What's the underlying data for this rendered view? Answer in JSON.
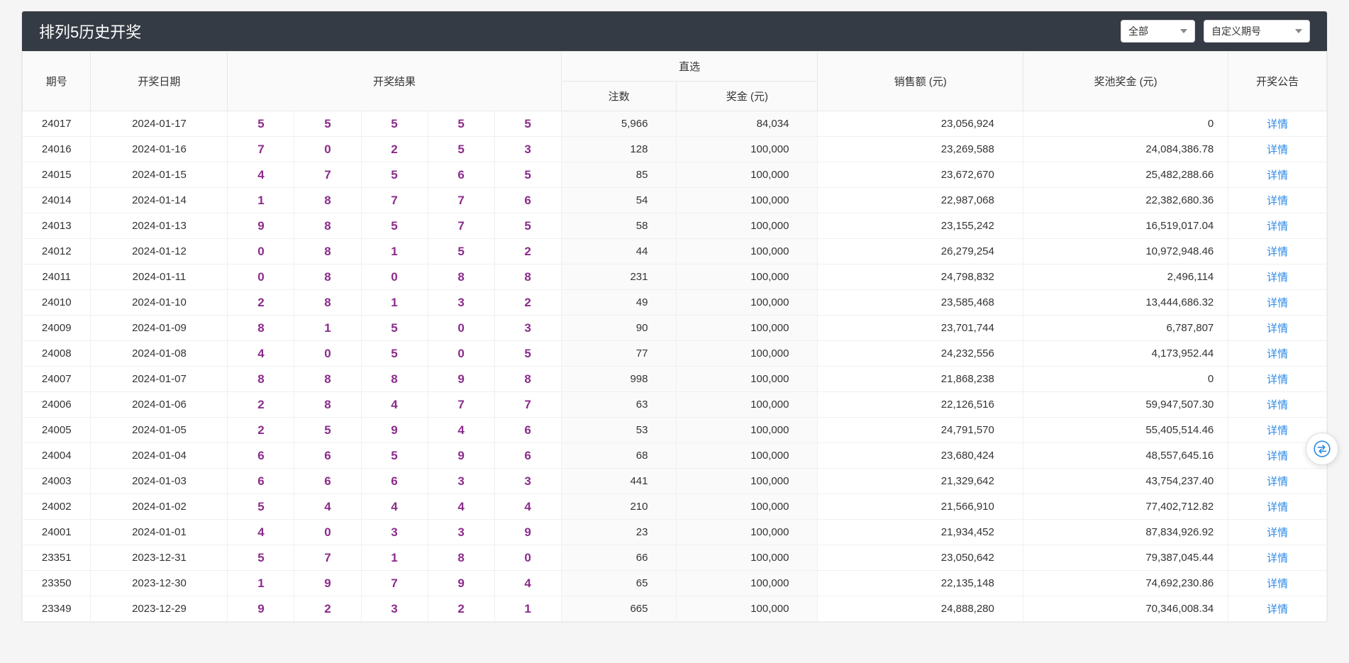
{
  "title": "排列5历史开奖",
  "filters": {
    "all": "全部",
    "custom": "自定义期号"
  },
  "headers": {
    "issue": "期号",
    "date": "开奖日期",
    "result": "开奖结果",
    "direct": "直选",
    "count": "注数",
    "prize": "奖金 (元)",
    "sales": "销售额 (元)",
    "pool": "奖池奖金 (元)",
    "notice": "开奖公告",
    "detail": "详情"
  },
  "col_widths": {
    "issue": 80,
    "date": 160,
    "ball": 78,
    "count": 135,
    "prize": 165,
    "sales": 240,
    "pool": 240,
    "notice": 115
  },
  "colors": {
    "ball": "#8b2b8b",
    "link": "#2e8ae6",
    "headerbar": "#353b44"
  },
  "rows": [
    {
      "issue": "24017",
      "date": "2024-01-17",
      "balls": [
        "5",
        "5",
        "5",
        "5",
        "5"
      ],
      "count": "5,966",
      "prize": "84,034",
      "sales": "23,056,924",
      "pool": "0"
    },
    {
      "issue": "24016",
      "date": "2024-01-16",
      "balls": [
        "7",
        "0",
        "2",
        "5",
        "3"
      ],
      "count": "128",
      "prize": "100,000",
      "sales": "23,269,588",
      "pool": "24,084,386.78"
    },
    {
      "issue": "24015",
      "date": "2024-01-15",
      "balls": [
        "4",
        "7",
        "5",
        "6",
        "5"
      ],
      "count": "85",
      "prize": "100,000",
      "sales": "23,672,670",
      "pool": "25,482,288.66"
    },
    {
      "issue": "24014",
      "date": "2024-01-14",
      "balls": [
        "1",
        "8",
        "7",
        "7",
        "6"
      ],
      "count": "54",
      "prize": "100,000",
      "sales": "22,987,068",
      "pool": "22,382,680.36"
    },
    {
      "issue": "24013",
      "date": "2024-01-13",
      "balls": [
        "9",
        "8",
        "5",
        "7",
        "5"
      ],
      "count": "58",
      "prize": "100,000",
      "sales": "23,155,242",
      "pool": "16,519,017.04"
    },
    {
      "issue": "24012",
      "date": "2024-01-12",
      "balls": [
        "0",
        "8",
        "1",
        "5",
        "2"
      ],
      "count": "44",
      "prize": "100,000",
      "sales": "26,279,254",
      "pool": "10,972,948.46"
    },
    {
      "issue": "24011",
      "date": "2024-01-11",
      "balls": [
        "0",
        "8",
        "0",
        "8",
        "8"
      ],
      "count": "231",
      "prize": "100,000",
      "sales": "24,798,832",
      "pool": "2,496,114"
    },
    {
      "issue": "24010",
      "date": "2024-01-10",
      "balls": [
        "2",
        "8",
        "1",
        "3",
        "2"
      ],
      "count": "49",
      "prize": "100,000",
      "sales": "23,585,468",
      "pool": "13,444,686.32"
    },
    {
      "issue": "24009",
      "date": "2024-01-09",
      "balls": [
        "8",
        "1",
        "5",
        "0",
        "3"
      ],
      "count": "90",
      "prize": "100,000",
      "sales": "23,701,744",
      "pool": "6,787,807"
    },
    {
      "issue": "24008",
      "date": "2024-01-08",
      "balls": [
        "4",
        "0",
        "5",
        "0",
        "5"
      ],
      "count": "77",
      "prize": "100,000",
      "sales": "24,232,556",
      "pool": "4,173,952.44"
    },
    {
      "issue": "24007",
      "date": "2024-01-07",
      "balls": [
        "8",
        "8",
        "8",
        "9",
        "8"
      ],
      "count": "998",
      "prize": "100,000",
      "sales": "21,868,238",
      "pool": "0"
    },
    {
      "issue": "24006",
      "date": "2024-01-06",
      "balls": [
        "2",
        "8",
        "4",
        "7",
        "7"
      ],
      "count": "63",
      "prize": "100,000",
      "sales": "22,126,516",
      "pool": "59,947,507.30"
    },
    {
      "issue": "24005",
      "date": "2024-01-05",
      "balls": [
        "2",
        "5",
        "9",
        "4",
        "6"
      ],
      "count": "53",
      "prize": "100,000",
      "sales": "24,791,570",
      "pool": "55,405,514.46"
    },
    {
      "issue": "24004",
      "date": "2024-01-04",
      "balls": [
        "6",
        "6",
        "5",
        "9",
        "6"
      ],
      "count": "68",
      "prize": "100,000",
      "sales": "23,680,424",
      "pool": "48,557,645.16"
    },
    {
      "issue": "24003",
      "date": "2024-01-03",
      "balls": [
        "6",
        "6",
        "6",
        "3",
        "3"
      ],
      "count": "441",
      "prize": "100,000",
      "sales": "21,329,642",
      "pool": "43,754,237.40"
    },
    {
      "issue": "24002",
      "date": "2024-01-02",
      "balls": [
        "5",
        "4",
        "4",
        "4",
        "4"
      ],
      "count": "210",
      "prize": "100,000",
      "sales": "21,566,910",
      "pool": "77,402,712.82"
    },
    {
      "issue": "24001",
      "date": "2024-01-01",
      "balls": [
        "4",
        "0",
        "3",
        "3",
        "9"
      ],
      "count": "23",
      "prize": "100,000",
      "sales": "21,934,452",
      "pool": "87,834,926.92"
    },
    {
      "issue": "23351",
      "date": "2023-12-31",
      "balls": [
        "5",
        "7",
        "1",
        "8",
        "0"
      ],
      "count": "66",
      "prize": "100,000",
      "sales": "23,050,642",
      "pool": "79,387,045.44"
    },
    {
      "issue": "23350",
      "date": "2023-12-30",
      "balls": [
        "1",
        "9",
        "7",
        "9",
        "4"
      ],
      "count": "65",
      "prize": "100,000",
      "sales": "22,135,148",
      "pool": "74,692,230.86"
    },
    {
      "issue": "23349",
      "date": "2023-12-29",
      "balls": [
        "9",
        "2",
        "3",
        "2",
        "1"
      ],
      "count": "665",
      "prize": "100,000",
      "sales": "24,888,280",
      "pool": "70,346,008.34"
    }
  ]
}
